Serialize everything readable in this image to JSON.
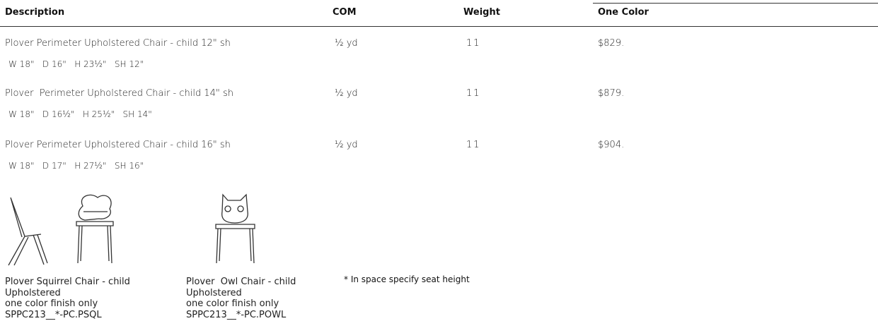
{
  "table": {
    "header": [
      "Description",
      "COM",
      "Weight",
      "One Color"
    ],
    "rows": [
      {
        "description": "Plover Perimeter Upholstered Chair - child 12\" sh",
        "dimensions": "W 18\"   D 16\"   H 23½\"   SH 12\"",
        "com": "½ yd",
        "weight": "11",
        "price": "$829."
      },
      {
        "description": "Plover  Perimeter Upholstered Chair - child 14\" sh",
        "dimensions": "W 18\"   D 16½\"   H 25½\"   SH 14\"",
        "com": "½ yd",
        "weight": "11",
        "price": "$879."
      },
      {
        "description": "Plover Perimeter Upholstered Chair - child 16\" sh",
        "dimensions": "W 18\"   D 17\"   H 27½\"   SH 16\"",
        "com": "½ yd",
        "weight": "11",
        "price": "$904."
      }
    ]
  },
  "products": [
    {
      "lines": [
        "Plover Squirrel Chair - child",
        "Upholstered",
        "one color finish only",
        "SPPC213__*-PC.PSQL"
      ]
    },
    {
      "lines": [
        "Plover  Owl Chair - child",
        "Upholstered",
        "one color finish only",
        "SPPC213__*-PC.POWL"
      ]
    }
  ],
  "note": "* In space specify seat height"
}
